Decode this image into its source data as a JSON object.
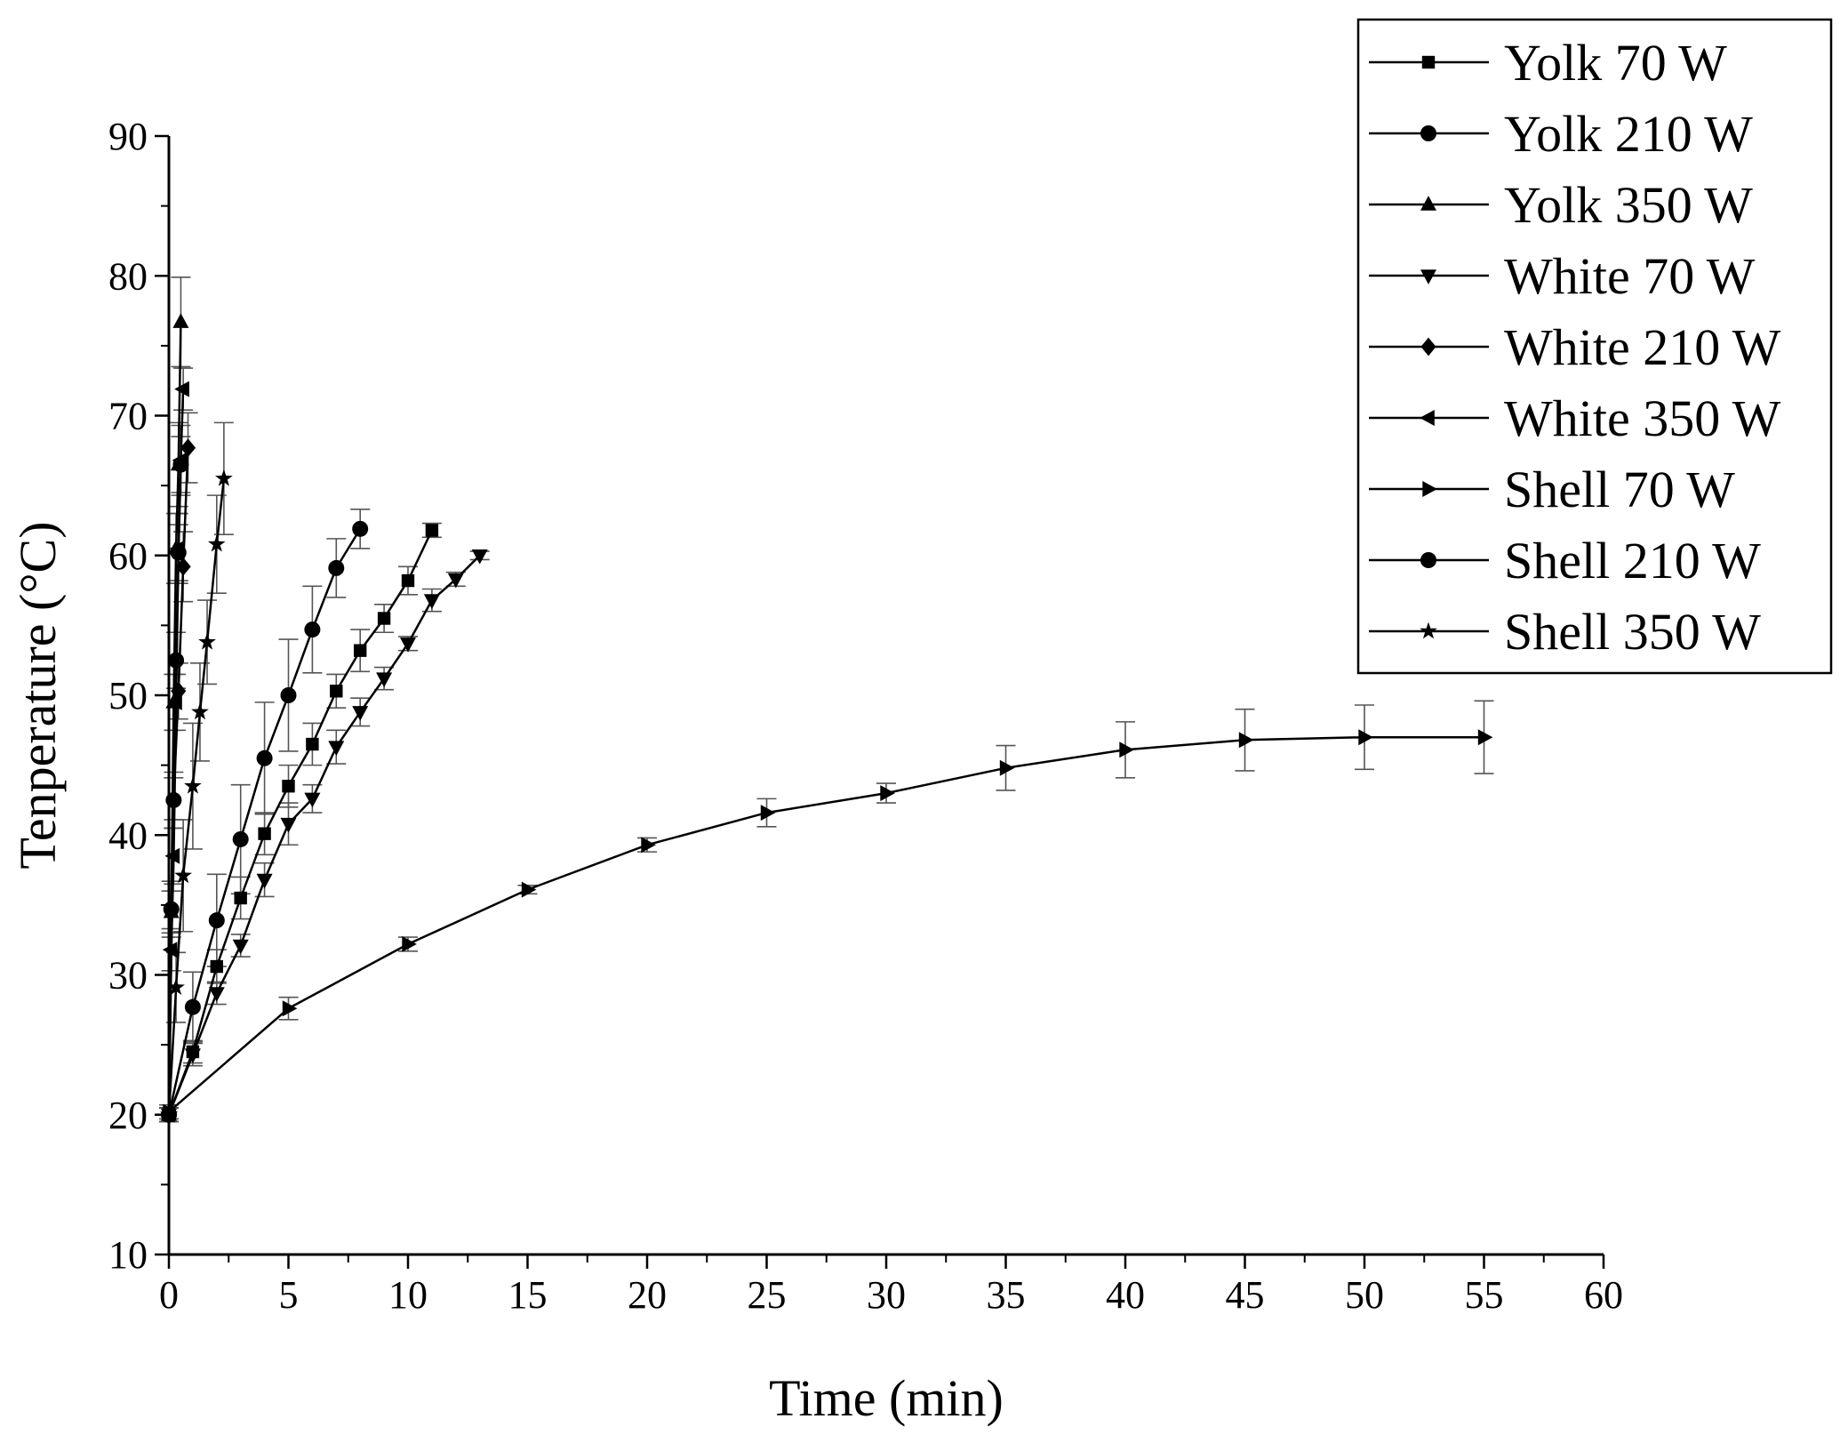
{
  "chart_data": {
    "type": "line",
    "title": "",
    "xlabel": "Time (min)",
    "ylabel": "Tenperature (°C)",
    "xlim": [
      0,
      60
    ],
    "ylim": [
      10,
      90
    ],
    "x_ticks": [
      "0",
      "5",
      "10",
      "15",
      "20",
      "25",
      "30",
      "35",
      "40",
      "45",
      "50",
      "55",
      "60"
    ],
    "y_ticks": [
      "10",
      "20",
      "30",
      "40",
      "50",
      "60",
      "70",
      "80",
      "90"
    ],
    "grid": false,
    "legend_position": "top-right",
    "series": [
      {
        "name": "Yolk 70 W",
        "marker": "square",
        "x": [
          0,
          1,
          2,
          3,
          4,
          5,
          6,
          7,
          8,
          9,
          10,
          11
        ],
        "y": [
          20,
          24.5,
          30.6,
          35.5,
          40.1,
          43.5,
          46.5,
          50.3,
          53.2,
          55.5,
          58.2,
          61.8
        ],
        "err": [
          0.5,
          0.8,
          1.2,
          1.5,
          1.5,
          1.5,
          1.5,
          1.2,
          1.5,
          1.0,
          1.0,
          0.5
        ]
      },
      {
        "name": "Yolk 210 W",
        "marker": "circle",
        "x": [
          0,
          1,
          2,
          3,
          4,
          5,
          6,
          7,
          8
        ],
        "y": [
          20,
          27.7,
          33.9,
          39.7,
          45.5,
          50,
          54.7,
          59.1,
          61.9
        ],
        "err": [
          0.5,
          2.5,
          3.3,
          3.9,
          4.0,
          4.0,
          3.1,
          2.1,
          1.4
        ]
      },
      {
        "name": "Yolk 350 W",
        "marker": "triangle-up",
        "x": [
          0,
          0.1,
          0.2,
          0.3,
          0.4,
          0.5
        ],
        "y": [
          20,
          34.5,
          49.5,
          60.5,
          66.5,
          76.7
        ],
        "err": [
          0.5,
          1.5,
          2.0,
          2.5,
          3.0,
          3.2
        ]
      },
      {
        "name": "White 70 W",
        "marker": "triangle-down",
        "x": [
          0,
          1,
          2,
          3,
          4,
          5,
          6,
          7,
          8,
          9,
          10,
          11,
          12,
          13
        ],
        "y": [
          20,
          24.3,
          28.7,
          32.1,
          36.8,
          40.8,
          42.6,
          46.3,
          48.8,
          51.2,
          53.7,
          56.8,
          58.3,
          60
        ],
        "err": [
          0.5,
          0.8,
          0.8,
          0.8,
          1.2,
          1.5,
          1.0,
          1.2,
          1.0,
          0.8,
          0.5,
          0.8,
          0.5,
          0.3
        ]
      },
      {
        "name": "White 210 W",
        "marker": "diamond",
        "x": [
          0,
          0.2,
          0.4,
          0.6,
          0.8
        ],
        "y": [
          20,
          42.6,
          50.3,
          59.2,
          67.7
        ],
        "err": [
          0.5,
          1.5,
          2.0,
          2.5,
          2.5
        ]
      },
      {
        "name": "White 350 W",
        "marker": "triangle-left",
        "x": [
          0,
          0.1,
          0.2,
          0.3,
          0.4,
          0.5,
          0.6
        ],
        "y": [
          20,
          31.8,
          38.5,
          49.5,
          60.5,
          66.8,
          71.9
        ],
        "err": [
          0.5,
          1.5,
          2.0,
          2.0,
          2.5,
          2.5,
          1.5
        ]
      },
      {
        "name": "Shell 70 W",
        "marker": "triangle-right",
        "x": [
          0,
          5,
          10,
          15,
          20,
          25,
          30,
          35,
          40,
          45,
          50,
          55
        ],
        "y": [
          20.2,
          27.6,
          32.2,
          36.1,
          39.3,
          41.6,
          43,
          44.8,
          46.1,
          46.8,
          47,
          47
        ],
        "err": [
          0.5,
          0.8,
          0.5,
          0.3,
          0.5,
          1.0,
          0.7,
          1.6,
          2.0,
          2.2,
          2.3,
          2.6
        ]
      },
      {
        "name": "Shell 210 W",
        "marker": "circle",
        "x": [
          0,
          0.1,
          0.2,
          0.3,
          0.4,
          0.5
        ],
        "y": [
          20,
          34.7,
          42.5,
          52.5,
          60.2,
          66.5
        ],
        "err": [
          0.5,
          2.0,
          2.0,
          2.0,
          2.0,
          2.0
        ]
      },
      {
        "name": "Shell 350 W",
        "marker": "star",
        "x": [
          0,
          0.3,
          0.6,
          1,
          1.3,
          1.6,
          2,
          2.3
        ],
        "y": [
          20,
          29.1,
          37.1,
          43.5,
          48.8,
          53.8,
          60.8,
          65.5
        ],
        "err": [
          0.5,
          2.5,
          4.0,
          4.5,
          3.5,
          3.0,
          3.5,
          4.0
        ]
      }
    ]
  }
}
